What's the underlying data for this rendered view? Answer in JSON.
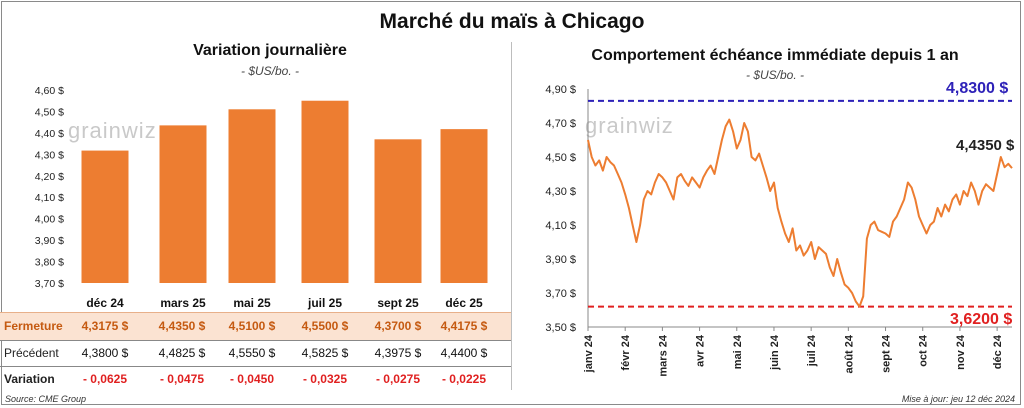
{
  "title": "Marché du maïs à Chicago",
  "source": "Source: CME Group",
  "updated": "Mise à jour: jeu 12 déc 2024",
  "watermark": "grainwiz",
  "colors": {
    "bar": "#ED7D31",
    "line": "#ED7D31",
    "high": "#2E22B8",
    "low": "#E02020",
    "down": "#E02020",
    "fermeture_bg": "#FBE3D2"
  },
  "left": {
    "title": "Variation journalière",
    "unit": "- $US/bo. -",
    "rows": {
      "fermeture_label": "Fermeture",
      "precedent_label": "Précédent",
      "variation_label": "Variation"
    },
    "fermeture": [
      "4,3175  $",
      "4,4350  $",
      "4,5100  $",
      "4,5500  $",
      "4,3700  $",
      "4,4175  $"
    ],
    "precedent": [
      "4,3800  $",
      "4,4825  $",
      "4,5550  $",
      "4,5825  $",
      "4,3975  $",
      "4,4400  $"
    ],
    "variation": [
      "- 0,0625",
      "- 0,0475",
      "- 0,0450",
      "- 0,0325",
      "- 0,0275",
      "- 0,0225"
    ]
  },
  "right": {
    "title": "Comportement  échéance immédiate depuis 1 an",
    "unit": "- $US/bo. -",
    "high_label": "4,8300 $",
    "low_label": "3,6200 $",
    "last_label": "4,4350 $"
  },
  "chart_data": [
    {
      "type": "bar",
      "title": "Variation journalière",
      "ylabel": "$US/bo.",
      "categories": [
        "déc 24",
        "mars 25",
        "mai 25",
        "juil 25",
        "sept 25",
        "déc 25"
      ],
      "values": [
        4.3175,
        4.435,
        4.51,
        4.55,
        4.37,
        4.4175
      ],
      "ylim": [
        3.7,
        4.6
      ],
      "yticks": [
        "3,70 $",
        "3,80 $",
        "3,90 $",
        "4,00 $",
        "4,10 $",
        "4,20 $",
        "4,30 $",
        "4,40 $",
        "4,50 $",
        "4,60 $"
      ],
      "ytick_values": [
        3.7,
        3.8,
        3.9,
        4.0,
        4.1,
        4.2,
        4.3,
        4.4,
        4.5,
        4.6
      ]
    },
    {
      "type": "line",
      "title": "Comportement  échéance immédiate depuis 1 an",
      "ylabel": "$US/bo.",
      "ylim": [
        3.5,
        4.9
      ],
      "yticks": [
        "3,50 $",
        "3,70 $",
        "3,90 $",
        "4,10 $",
        "4,30 $",
        "4,50 $",
        "4,70 $",
        "4,90 $"
      ],
      "ytick_values": [
        3.5,
        3.7,
        3.9,
        4.1,
        4.3,
        4.5,
        4.7,
        4.9
      ],
      "x_range": [
        0,
        11.4
      ],
      "x_months": [
        "janv 24",
        "févr 24",
        "mars 24",
        "avr 24",
        "mai 24",
        "juin 24",
        "juil 24",
        "août 24",
        "sept 24",
        "oct 24",
        "nov 24",
        "déc 24"
      ],
      "x_month_positions": [
        0,
        1,
        2,
        3,
        4,
        5,
        6,
        7,
        8,
        9,
        10,
        11
      ],
      "reference_lines": [
        {
          "name": "high",
          "value": 4.83
        },
        {
          "name": "low",
          "value": 3.62
        }
      ],
      "series": [
        {
          "name": "Échéance immédiate",
          "x": [
            0,
            0.1,
            0.2,
            0.3,
            0.4,
            0.5,
            0.6,
            0.7,
            0.8,
            0.9,
            1.0,
            1.1,
            1.2,
            1.3,
            1.4,
            1.5,
            1.6,
            1.7,
            1.8,
            1.9,
            2.0,
            2.1,
            2.2,
            2.3,
            2.4,
            2.5,
            2.6,
            2.7,
            2.8,
            2.9,
            3.0,
            3.1,
            3.2,
            3.3,
            3.4,
            3.5,
            3.6,
            3.7,
            3.8,
            3.9,
            4.0,
            4.1,
            4.2,
            4.3,
            4.4,
            4.5,
            4.6,
            4.7,
            4.8,
            4.9,
            5.0,
            5.1,
            5.2,
            5.3,
            5.4,
            5.5,
            5.6,
            5.7,
            5.8,
            5.9,
            6.0,
            6.1,
            6.2,
            6.3,
            6.4,
            6.5,
            6.6,
            6.7,
            6.8,
            6.9,
            7.0,
            7.1,
            7.2,
            7.3,
            7.4,
            7.5,
            7.6,
            7.7,
            7.8,
            7.9,
            8.0,
            8.1,
            8.2,
            8.3,
            8.4,
            8.5,
            8.6,
            8.7,
            8.8,
            8.9,
            9.0,
            9.1,
            9.2,
            9.3,
            9.4,
            9.5,
            9.6,
            9.7,
            9.8,
            9.9,
            10.0,
            10.1,
            10.2,
            10.3,
            10.4,
            10.5,
            10.6,
            10.7,
            10.8,
            10.9,
            11.0,
            11.1,
            11.2,
            11.3,
            11.4
          ],
          "y": [
            4.6,
            4.5,
            4.45,
            4.48,
            4.42,
            4.5,
            4.47,
            4.45,
            4.4,
            4.35,
            4.28,
            4.2,
            4.1,
            4.0,
            4.1,
            4.25,
            4.3,
            4.28,
            4.35,
            4.4,
            4.38,
            4.35,
            4.3,
            4.25,
            4.38,
            4.4,
            4.36,
            4.33,
            4.38,
            4.35,
            4.32,
            4.38,
            4.42,
            4.45,
            4.4,
            4.5,
            4.6,
            4.68,
            4.72,
            4.65,
            4.55,
            4.6,
            4.7,
            4.65,
            4.5,
            4.48,
            4.52,
            4.45,
            4.38,
            4.3,
            4.35,
            4.2,
            4.12,
            4.05,
            4.0,
            4.08,
            3.95,
            3.98,
            3.92,
            3.95,
            4.0,
            3.9,
            3.97,
            3.95,
            3.93,
            3.85,
            3.8,
            3.9,
            3.82,
            3.75,
            3.73,
            3.7,
            3.65,
            3.62,
            3.68,
            4.02,
            4.1,
            4.12,
            4.07,
            4.06,
            4.05,
            4.03,
            4.12,
            4.15,
            4.2,
            4.25,
            4.35,
            4.32,
            4.25,
            4.15,
            4.1,
            4.05,
            4.1,
            4.12,
            4.2,
            4.15,
            4.22,
            4.18,
            4.25,
            4.28,
            4.22,
            4.3,
            4.27,
            4.35,
            4.3,
            4.22,
            4.3,
            4.34,
            4.32,
            4.3,
            4.4,
            4.5,
            4.44,
            4.46,
            4.435
          ]
        }
      ]
    }
  ]
}
